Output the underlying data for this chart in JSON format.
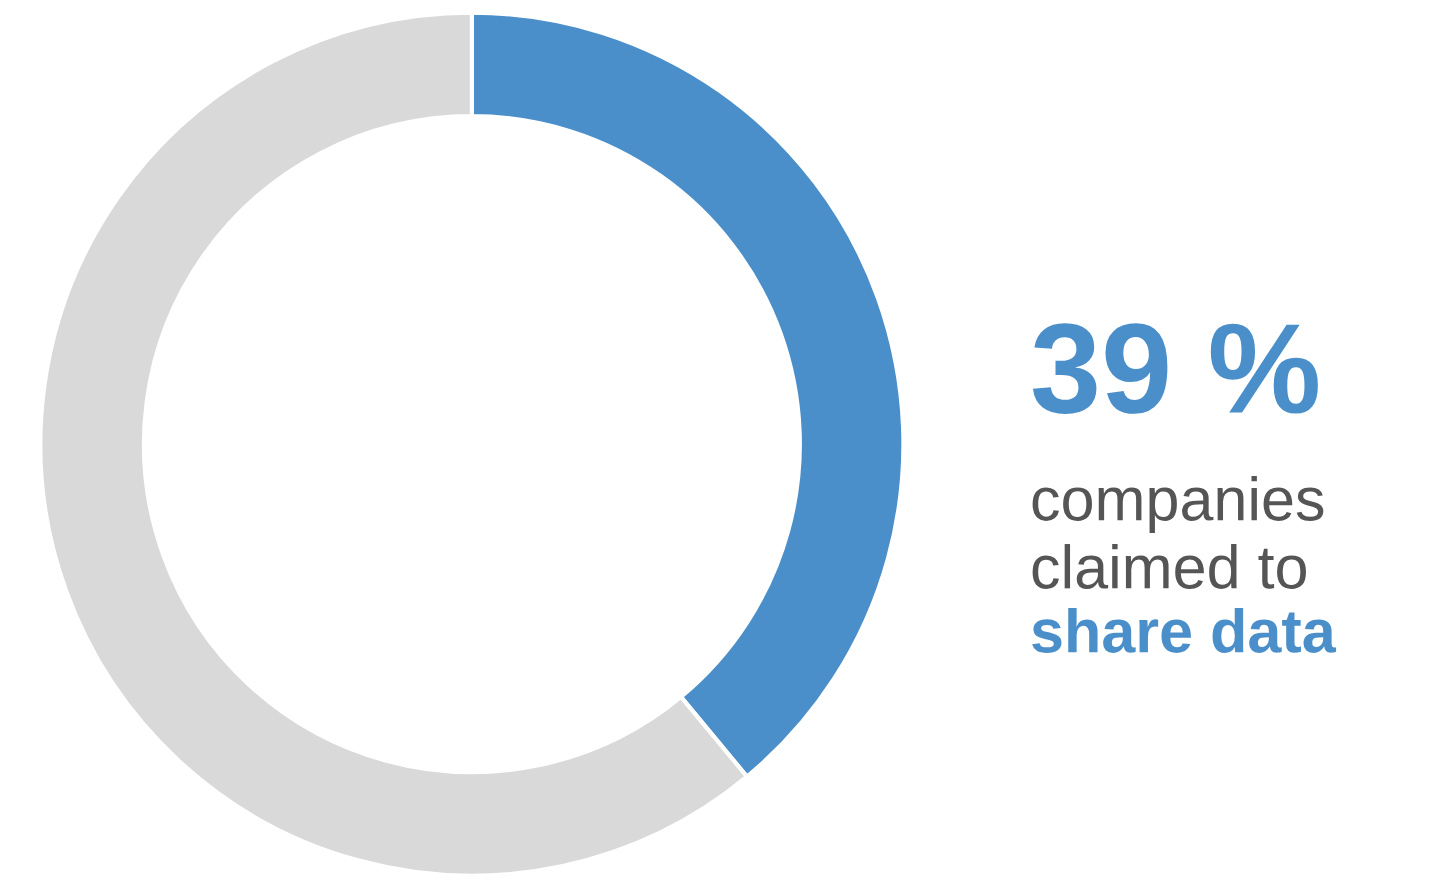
{
  "chart_data": {
    "type": "donut",
    "categories": [
      null,
      null
    ],
    "values": [
      39,
      61
    ],
    "colors": [
      "#4a8fc9",
      "#d9d9d9"
    ],
    "value_labels": [
      "39 %",
      null
    ],
    "annotations": [
      "companies\nclaimed to",
      "share data"
    ],
    "legend": false
  }
}
